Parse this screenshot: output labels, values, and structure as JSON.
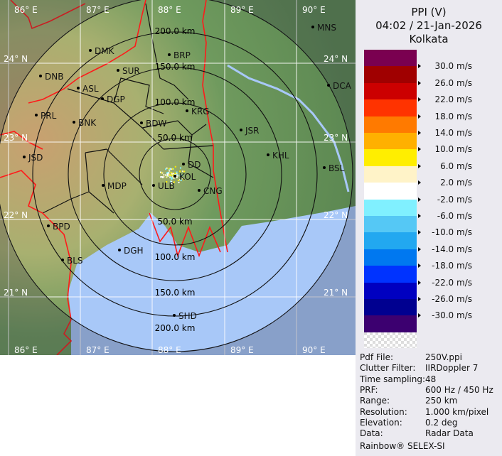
{
  "header": {
    "product": "PPI (V)",
    "datetime": "04:02 / 21-Jan-2026",
    "site": "Kolkata"
  },
  "legend": {
    "unit": "m/s",
    "colors": [
      "#7a0050",
      "#a00000",
      "#cc0000",
      "#ff3300",
      "#ff7a00",
      "#ffb000",
      "#ffee00",
      "#fff3c8",
      "#ffffff",
      "#80f0ff",
      "#55c8f5",
      "#22a8f0",
      "#0078f0",
      "#0033ff",
      "#0000c0",
      "#000090",
      "#3c0070"
    ],
    "labels": [
      "30.0 m/s",
      "26.0 m/s",
      "22.0 m/s",
      "18.0 m/s",
      "14.0 m/s",
      "10.0 m/s",
      "6.0 m/s",
      "2.0 m/s",
      "-2.0 m/s",
      "-6.0 m/s",
      "-10.0 m/s",
      "-14.0 m/s",
      "-18.0 m/s",
      "-22.0 m/s",
      "-26.0 m/s",
      "-30.0 m/s"
    ]
  },
  "info": [
    {
      "key": "Pdf File:",
      "value": "250V.ppi"
    },
    {
      "key": "Clutter Filter:",
      "value": "IIRDoppler 7"
    },
    {
      "key": "Time sampling:",
      "value": "48"
    },
    {
      "key": "PRF:",
      "value": "600 Hz / 450 Hz"
    },
    {
      "key": "Range:",
      "value": "250 km"
    },
    {
      "key": "Resolution:",
      "value": "1.000 km/pixel"
    },
    {
      "key": "Elevation:",
      "value": "0.2 deg"
    },
    {
      "key": "Data:",
      "value": "Radar Data"
    }
  ],
  "credit": "Rainbow® SELEX-SI",
  "map": {
    "range_rings": [
      "50.0 km",
      "100.0 km",
      "150.0 km",
      "200.0 km"
    ],
    "longitudes": [
      "86° E",
      "87° E",
      "88° E",
      "89° E",
      "90° E"
    ],
    "latitudes": [
      "24° N",
      "23° N",
      "22° N",
      "21° N"
    ],
    "stations": [
      "MNS",
      "DMK",
      "BRP",
      "SUR",
      "DNB",
      "ASL",
      "DCA",
      "DGP",
      "KRG",
      "PRL",
      "BNK",
      "BDW",
      "JSR",
      "KHL",
      "JSD",
      "DD",
      "KOL",
      "BSL",
      "ULB",
      "CNG",
      "MDP",
      "BPD",
      "DGH",
      "BLS",
      "SHD"
    ],
    "colors": {
      "land": "#5f8a55",
      "sea": "#a8c8f8",
      "border": "#ff1a1a",
      "district": "#111111",
      "grid": "#ffffff"
    }
  }
}
